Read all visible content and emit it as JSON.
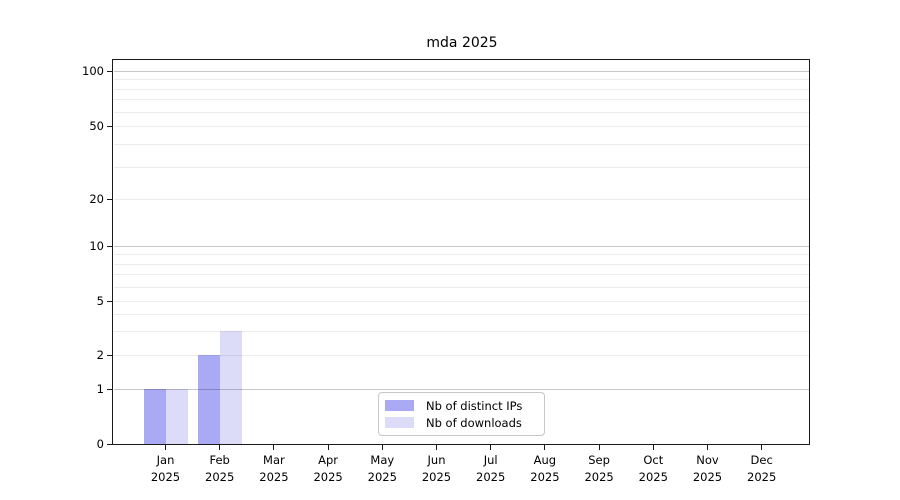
{
  "title": "mda 2025",
  "chart_data": {
    "type": "bar",
    "title": "mda 2025",
    "categories": [
      "Jan 2025",
      "Feb 2025",
      "Mar 2025",
      "Apr 2025",
      "May 2025",
      "Jun 2025",
      "Jul 2025",
      "Aug 2025",
      "Sep 2025",
      "Oct 2025",
      "Nov 2025",
      "Dec 2025"
    ],
    "series": [
      {
        "name": "Nb of distinct IPs",
        "color": "#a9a9f4",
        "values": [
          1,
          2,
          0,
          0,
          0,
          0,
          0,
          0,
          0,
          0,
          0,
          0
        ]
      },
      {
        "name": "Nb of downloads",
        "color": "#dcdcf8",
        "values": [
          1,
          3,
          0,
          0,
          0,
          0,
          0,
          0,
          0,
          0,
          0,
          0
        ]
      }
    ],
    "xlabel": "",
    "ylabel": "",
    "y_ticks": [
      0,
      1,
      2,
      5,
      10,
      20,
      50,
      100
    ],
    "y_scale": "symlog (linear 0-1, logarithmic above)",
    "ylim": [
      0,
      120
    ],
    "grid": "horizontal, major and minor",
    "legend_position": "lower center"
  },
  "legend": {
    "items": [
      {
        "label": "Nb of distinct IPs",
        "color": "#a9a9f4"
      },
      {
        "label": "Nb of downloads",
        "color": "#dcdcf8"
      }
    ]
  }
}
